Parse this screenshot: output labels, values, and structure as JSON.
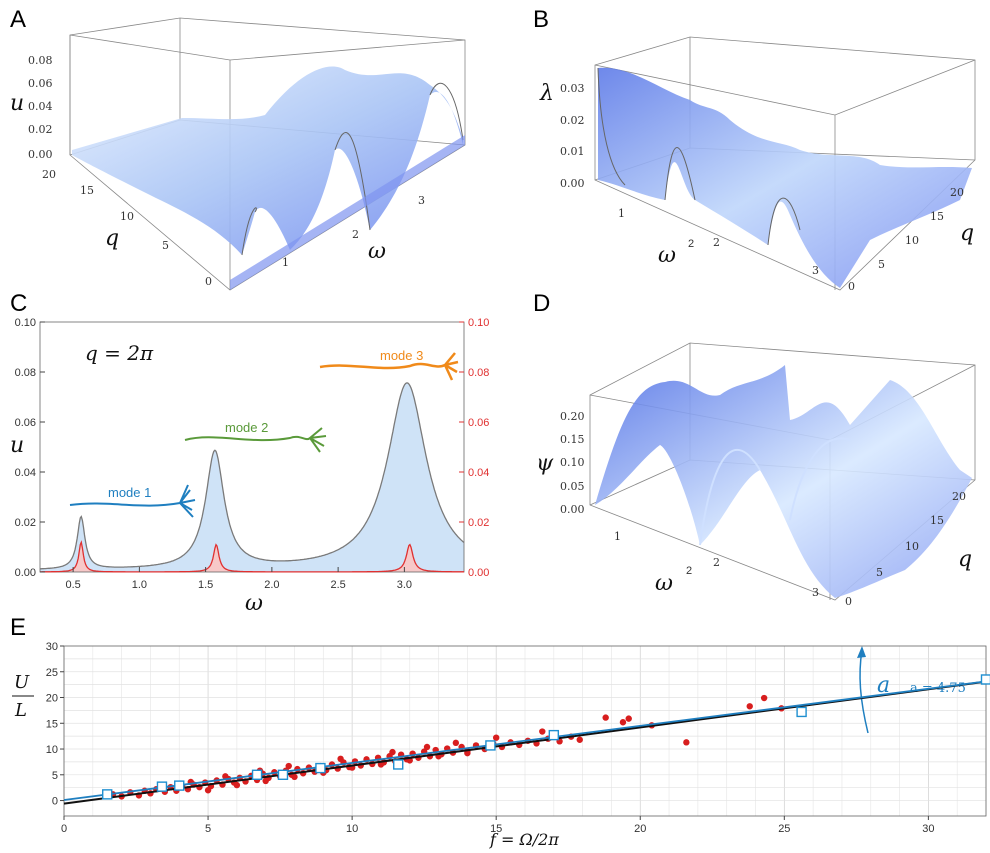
{
  "panels": {
    "A": {
      "letter": "A",
      "zlabel": "u",
      "ylabel": "q",
      "xlabel": "ω",
      "zticks": [
        "0.08",
        "0.06",
        "0.04",
        "0.02",
        "0.00"
      ],
      "yticks": [
        "20",
        "15",
        "10",
        "5",
        "0"
      ],
      "xticks": [
        "1",
        "2",
        "3"
      ]
    },
    "B": {
      "letter": "B",
      "zlabel": "λ",
      "ylabel": "q",
      "xlabel": "ω",
      "zticks": [
        "0.03",
        "0.02",
        "0.01",
        "0.00"
      ],
      "yticks": [
        "20",
        "15",
        "10",
        "5",
        "0"
      ],
      "xticks": [
        "1",
        "2",
        "3"
      ]
    },
    "C": {
      "letter": "C",
      "annotation": "q = 2π",
      "ylabel": "u",
      "xlabel": "ω",
      "mode_labels": [
        "mode 1",
        "mode 2",
        "mode 3"
      ],
      "mode_colors": [
        "#1f7fc0",
        "#5a9a3a",
        "#f08a1a"
      ]
    },
    "D": {
      "letter": "D",
      "zlabel": "ψ",
      "ylabel": "q",
      "xlabel": "ω",
      "zticks": [
        "0.20",
        "0.15",
        "0.10",
        "0.05",
        "0.00"
      ],
      "yticks": [
        "20",
        "15",
        "10",
        "5",
        "0"
      ],
      "xticks": [
        "1",
        "2",
        "3"
      ]
    },
    "E": {
      "letter": "E",
      "ylabel_num": "U",
      "ylabel_den": "L",
      "xlabel": "f = Ω/2π",
      "slope_symbol": "a",
      "slope_label": "a = 4.75"
    }
  },
  "chart_data": [
    {
      "id": "C",
      "type": "area",
      "xlabel": "ω",
      "ylabel": "u",
      "xlim": [
        0.25,
        3.45
      ],
      "ylim": [
        0,
        0.1
      ],
      "xticks": [
        0.5,
        1.0,
        1.5,
        2.0,
        2.5,
        3.0
      ],
      "yticks": [
        0.0,
        0.02,
        0.04,
        0.06,
        0.08,
        0.1
      ],
      "y2ticks": [
        0.0,
        0.02,
        0.04,
        0.06,
        0.08,
        0.1
      ],
      "series": [
        {
          "color": "#7a7a7a",
          "fill": "#cfe3f7",
          "peaks": [
            {
              "x": 0.56,
              "y": 0.021,
              "w": 0.035
            },
            {
              "x": 1.57,
              "y": 0.047,
              "w": 0.085
            },
            {
              "x": 3.02,
              "y": 0.075,
              "w": 0.18
            }
          ],
          "baseline": 0.0005
        },
        {
          "color": "#e03030",
          "fill": "#f7c8c8",
          "peaks": [
            {
              "x": 0.56,
              "y": 0.012,
              "w": 0.02
            },
            {
              "x": 1.58,
              "y": 0.011,
              "w": 0.025
            },
            {
              "x": 3.04,
              "y": 0.011,
              "w": 0.03
            }
          ],
          "baseline": 0.0
        }
      ]
    },
    {
      "id": "E",
      "type": "scatter",
      "xlabel": "f = Ω/2π",
      "ylabel": "U/L",
      "xlim": [
        0,
        32
      ],
      "ylim": [
        -3,
        30
      ],
      "xticks": [
        0,
        5,
        10,
        15,
        20,
        25,
        30
      ],
      "yticks": [
        0,
        5,
        10,
        15,
        20,
        25,
        30
      ],
      "fit_black": {
        "slope": 0.74,
        "intercept": -0.6
      },
      "fit_blue": {
        "slope": 0.72,
        "intercept": 0.1
      },
      "squares": [
        {
          "x": 1.5,
          "y": 1.2
        },
        {
          "x": 3.4,
          "y": 2.7
        },
        {
          "x": 4.0,
          "y": 2.9
        },
        {
          "x": 6.7,
          "y": 5.0
        },
        {
          "x": 7.6,
          "y": 5.0
        },
        {
          "x": 8.9,
          "y": 6.3
        },
        {
          "x": 11.6,
          "y": 7.0
        },
        {
          "x": 14.8,
          "y": 10.7
        },
        {
          "x": 17.0,
          "y": 12.7
        },
        {
          "x": 25.6,
          "y": 17.2
        },
        {
          "x": 32.0,
          "y": 23.5
        }
      ],
      "points": [
        {
          "x": 1.7,
          "y": 1.2
        },
        {
          "x": 2.0,
          "y": 0.8
        },
        {
          "x": 2.3,
          "y": 1.6
        },
        {
          "x": 2.6,
          "y": 1.0
        },
        {
          "x": 2.8,
          "y": 1.9
        },
        {
          "x": 3.0,
          "y": 1.4
        },
        {
          "x": 3.2,
          "y": 2.2
        },
        {
          "x": 3.5,
          "y": 1.7
        },
        {
          "x": 3.7,
          "y": 2.6
        },
        {
          "x": 3.9,
          "y": 1.9
        },
        {
          "x": 4.1,
          "y": 2.8
        },
        {
          "x": 4.3,
          "y": 2.2
        },
        {
          "x": 4.5,
          "y": 3.1
        },
        {
          "x": 4.7,
          "y": 2.6
        },
        {
          "x": 4.9,
          "y": 3.5
        },
        {
          "x": 5.1,
          "y": 2.8
        },
        {
          "x": 5.3,
          "y": 3.9
        },
        {
          "x": 5.5,
          "y": 3.1
        },
        {
          "x": 5.7,
          "y": 4.2
        },
        {
          "x": 5.9,
          "y": 3.5
        },
        {
          "x": 6.1,
          "y": 4.4
        },
        {
          "x": 6.3,
          "y": 3.7
        },
        {
          "x": 6.5,
          "y": 4.8
        },
        {
          "x": 6.7,
          "y": 4.0
        },
        {
          "x": 6.9,
          "y": 5.2
        },
        {
          "x": 7.1,
          "y": 4.4
        },
        {
          "x": 7.3,
          "y": 5.5
        },
        {
          "x": 7.5,
          "y": 4.7
        },
        {
          "x": 7.7,
          "y": 5.8
        },
        {
          "x": 7.9,
          "y": 5.0
        },
        {
          "x": 8.1,
          "y": 6.1
        },
        {
          "x": 8.3,
          "y": 5.3
        },
        {
          "x": 8.5,
          "y": 6.4
        },
        {
          "x": 8.7,
          "y": 5.6
        },
        {
          "x": 8.9,
          "y": 6.7
        },
        {
          "x": 9.1,
          "y": 5.9
        },
        {
          "x": 9.3,
          "y": 7.0
        },
        {
          "x": 9.5,
          "y": 6.2
        },
        {
          "x": 9.7,
          "y": 7.4
        },
        {
          "x": 9.9,
          "y": 6.5
        },
        {
          "x": 10.1,
          "y": 7.6
        },
        {
          "x": 10.3,
          "y": 6.8
        },
        {
          "x": 10.5,
          "y": 8.0
        },
        {
          "x": 10.7,
          "y": 7.1
        },
        {
          "x": 10.9,
          "y": 8.3
        },
        {
          "x": 11.1,
          "y": 7.4
        },
        {
          "x": 11.3,
          "y": 8.6
        },
        {
          "x": 11.5,
          "y": 7.6
        },
        {
          "x": 11.7,
          "y": 8.9
        },
        {
          "x": 11.9,
          "y": 8.0
        },
        {
          "x": 12.1,
          "y": 9.1
        },
        {
          "x": 12.3,
          "y": 8.3
        },
        {
          "x": 12.5,
          "y": 9.5
        },
        {
          "x": 12.7,
          "y": 8.6
        },
        {
          "x": 12.9,
          "y": 9.8
        },
        {
          "x": 13.1,
          "y": 9.0
        },
        {
          "x": 13.3,
          "y": 10.1
        },
        {
          "x": 13.5,
          "y": 9.3
        },
        {
          "x": 13.8,
          "y": 10.4
        },
        {
          "x": 14.0,
          "y": 9.6
        },
        {
          "x": 14.3,
          "y": 10.7
        },
        {
          "x": 14.6,
          "y": 10.0
        },
        {
          "x": 14.9,
          "y": 11.0
        },
        {
          "x": 15.2,
          "y": 10.4
        },
        {
          "x": 15.5,
          "y": 11.3
        },
        {
          "x": 15.8,
          "y": 10.8
        },
        {
          "x": 16.1,
          "y": 11.6
        },
        {
          "x": 16.4,
          "y": 11.1
        },
        {
          "x": 16.8,
          "y": 12.0
        },
        {
          "x": 17.2,
          "y": 11.5
        },
        {
          "x": 17.6,
          "y": 12.4
        },
        {
          "x": 17.9,
          "y": 11.8
        },
        {
          "x": 18.8,
          "y": 16.1
        },
        {
          "x": 19.4,
          "y": 15.2
        },
        {
          "x": 19.6,
          "y": 15.9
        },
        {
          "x": 20.4,
          "y": 14.6
        },
        {
          "x": 21.6,
          "y": 11.3
        },
        {
          "x": 23.8,
          "y": 18.3
        },
        {
          "x": 24.3,
          "y": 19.9
        },
        {
          "x": 24.9,
          "y": 17.9
        },
        {
          "x": 5.0,
          "y": 2.0
        },
        {
          "x": 6.0,
          "y": 3.0
        },
        {
          "x": 7.0,
          "y": 3.8
        },
        {
          "x": 8.0,
          "y": 4.6
        },
        {
          "x": 9.0,
          "y": 5.4
        },
        {
          "x": 10.0,
          "y": 6.4
        },
        {
          "x": 11.0,
          "y": 7.0
        },
        {
          "x": 12.0,
          "y": 7.8
        },
        {
          "x": 13.0,
          "y": 8.6
        },
        {
          "x": 14.0,
          "y": 9.2
        },
        {
          "x": 4.4,
          "y": 3.6
        },
        {
          "x": 5.6,
          "y": 4.7
        },
        {
          "x": 6.8,
          "y": 5.8
        },
        {
          "x": 7.8,
          "y": 6.7
        },
        {
          "x": 9.6,
          "y": 8.1
        },
        {
          "x": 11.4,
          "y": 9.4
        },
        {
          "x": 12.6,
          "y": 10.4
        },
        {
          "x": 13.6,
          "y": 11.2
        },
        {
          "x": 15.0,
          "y": 12.2
        },
        {
          "x": 16.6,
          "y": 13.4
        }
      ]
    }
  ]
}
